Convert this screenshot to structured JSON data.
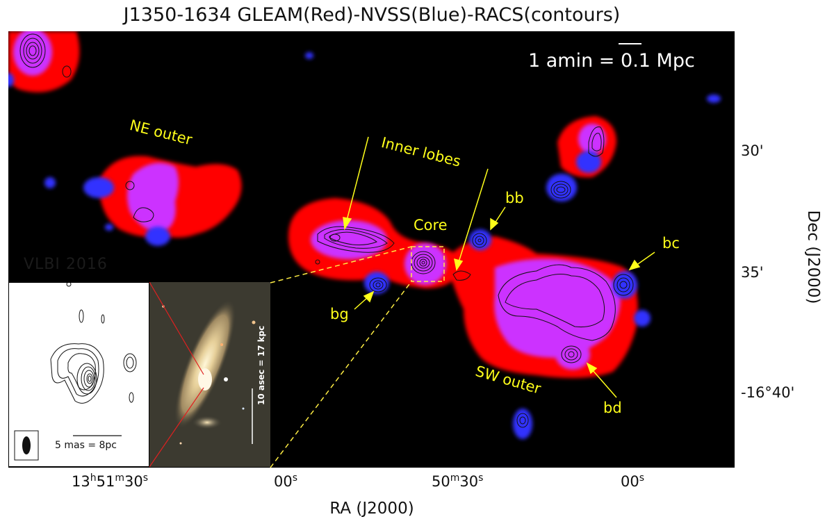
{
  "title": "J1350-1634 GLEAM(Red)-NVSS(Blue)-RACS(contours)",
  "scale_label": "1 amin = 0.1 Mpc",
  "axes": {
    "xlabel": "RA (J2000)",
    "ylabel": "Dec (J2000)",
    "x_ticks": [
      "13h51m30s",
      "00s",
      "50m30s",
      "00s"
    ],
    "y_ticks": [
      "30'",
      "35'",
      "-16°40'"
    ]
  },
  "labels": {
    "ne_outer": "NE outer",
    "inner_lobes": "Inner lobes",
    "core": "Core",
    "bb": "bb",
    "bc": "bc",
    "bg": "bg",
    "bd": "bd",
    "sw_outer": "SW outer"
  },
  "vlbi_inset": {
    "heading": "VLBI 2016",
    "caption": "5 mas = 8pc"
  },
  "optical_inset": {
    "caption": "10 asec = 17 kpc"
  },
  "colors": {
    "gleam": "#ff0000",
    "nvss": "#3333ff",
    "overlap": "#cc33ff",
    "labels": "#ffff1a"
  }
}
